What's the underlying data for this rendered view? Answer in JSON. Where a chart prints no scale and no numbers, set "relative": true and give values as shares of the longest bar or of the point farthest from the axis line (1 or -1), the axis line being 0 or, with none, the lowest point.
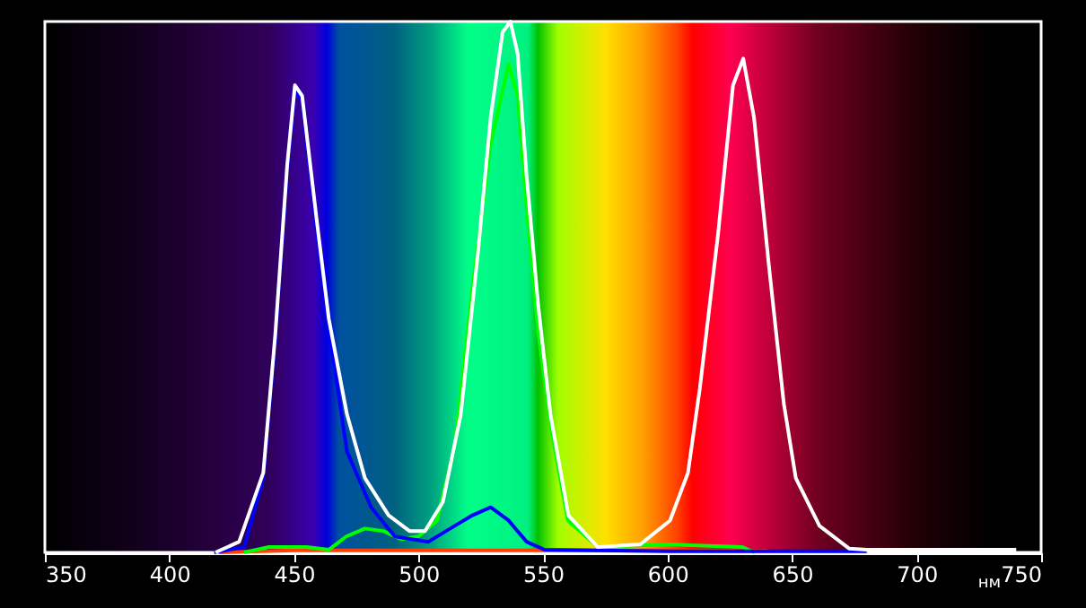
{
  "chart_data": {
    "type": "line",
    "xlabel": "нм",
    "relative": true,
    "grid": false,
    "marker": "none",
    "line_style": "solid",
    "xlim": [
      350,
      750
    ],
    "xticks": [
      350,
      400,
      450,
      500,
      550,
      600,
      650,
      700,
      750
    ],
    "series": [
      {
        "color": "#ff4000",
        "x": [
          420,
          450,
          500,
          560,
          590,
          640
        ],
        "values": [
          0,
          0.004,
          0.004,
          0.004,
          0.004,
          0.003
        ]
      },
      {
        "color": "#00ff00",
        "x": [
          430,
          440,
          455,
          464,
          471,
          478.5,
          486,
          493,
          500,
          507.4,
          514.5,
          521.7,
          529,
          536.2,
          539.8,
          543.4,
          548.2,
          553,
          560,
          572,
          600,
          630,
          635
        ],
        "values": [
          0,
          0.01,
          0.01,
          0.005,
          0.03,
          0.045,
          0.04,
          0.025,
          0.03,
          0.06,
          0.2,
          0.5,
          0.77,
          0.92,
          0.86,
          0.65,
          0.41,
          0.24,
          0.06,
          0.01,
          0.015,
          0.01,
          0
        ]
      },
      {
        "color": "#0000ff",
        "x": [
          418,
          430,
          437.7,
          442.5,
          447.3,
          450.4,
          453.3,
          459.3,
          464,
          471.3,
          481,
          490.5,
          504,
          514.5,
          521.7,
          529,
          536.2,
          543.4,
          550.6,
          600,
          680
        ],
        "values": [
          0,
          0.01,
          0.14,
          0.4,
          0.72,
          0.87,
          0.85,
          0.6,
          0.42,
          0.19,
          0.085,
          0.03,
          0.02,
          0.05,
          0.07,
          0.085,
          0.06,
          0.02,
          0.005,
          0.002,
          0.002
        ]
      },
      {
        "color": "#ffffff",
        "x": [
          418.5,
          428,
          437.7,
          442.5,
          447.3,
          450.4,
          453.3,
          459.3,
          464,
          471.3,
          478.5,
          488,
          496.5,
          502.6,
          509.8,
          517,
          524,
          529,
          533.8,
          536.9,
          539.8,
          543.4,
          548.2,
          553,
          560.2,
          572,
          589,
          601,
          608.2,
          613,
          620.3,
          626.3,
          630.4,
          634.7,
          640.7,
          646.7,
          651.5,
          661,
          673,
          680,
          740
        ],
        "values": [
          0,
          0.02,
          0.15,
          0.41,
          0.73,
          0.88,
          0.86,
          0.62,
          0.44,
          0.26,
          0.14,
          0.07,
          0.04,
          0.04,
          0.095,
          0.26,
          0.57,
          0.82,
          0.98,
          1,
          0.94,
          0.71,
          0.46,
          0.26,
          0.07,
          0.01,
          0.015,
          0.06,
          0.15,
          0.31,
          0.6,
          0.88,
          0.93,
          0.82,
          0.54,
          0.28,
          0.14,
          0.05,
          0.007,
          0.005,
          0.005
        ]
      }
    ]
  }
}
